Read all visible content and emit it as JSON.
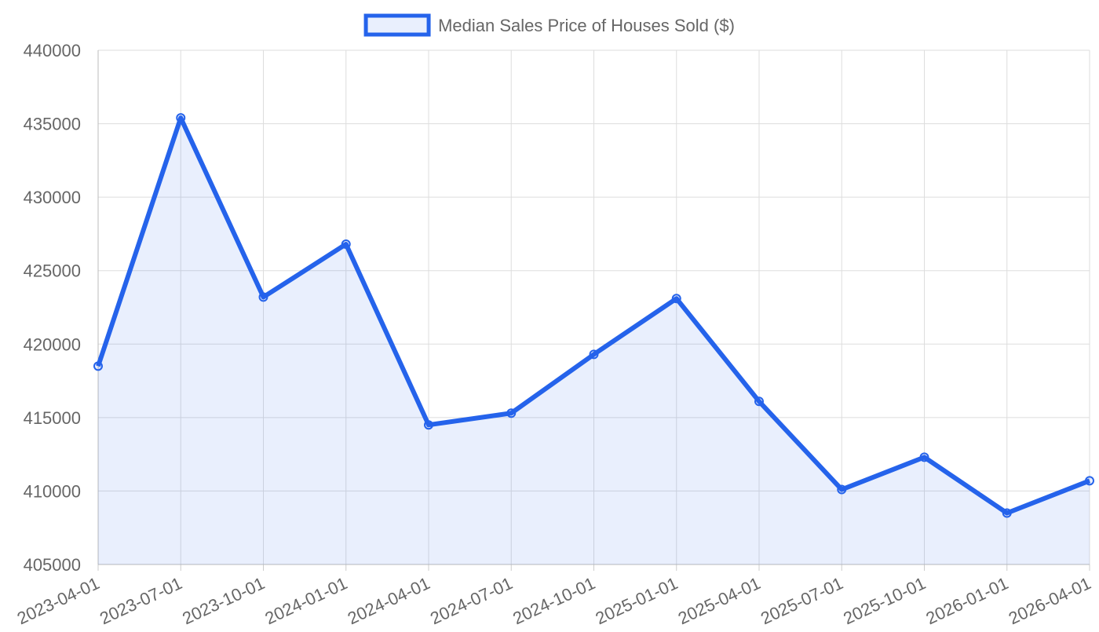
{
  "chart_data": {
    "type": "line",
    "legend_position": "top",
    "grid": true,
    "categories": [
      "2023-04-01",
      "2023-07-01",
      "2023-10-01",
      "2024-01-01",
      "2024-04-01",
      "2024-07-01",
      "2024-10-01",
      "2025-01-01",
      "2025-04-01",
      "2025-07-01",
      "2025-10-01",
      "2026-01-01",
      "2026-04-01"
    ],
    "series": [
      {
        "name": "Median Sales Price of Houses Sold ($)",
        "color": "#2563eb",
        "fill": "rgba(37,99,235,0.1)",
        "values": [
          418500,
          435400,
          423200,
          426800,
          414500,
          415300,
          419300,
          423100,
          416100,
          410100,
          412300,
          408500,
          410700
        ]
      }
    ],
    "ylim": [
      405000,
      440000
    ],
    "yticks": [
      405000,
      410000,
      415000,
      420000,
      425000,
      430000,
      435000,
      440000
    ]
  }
}
